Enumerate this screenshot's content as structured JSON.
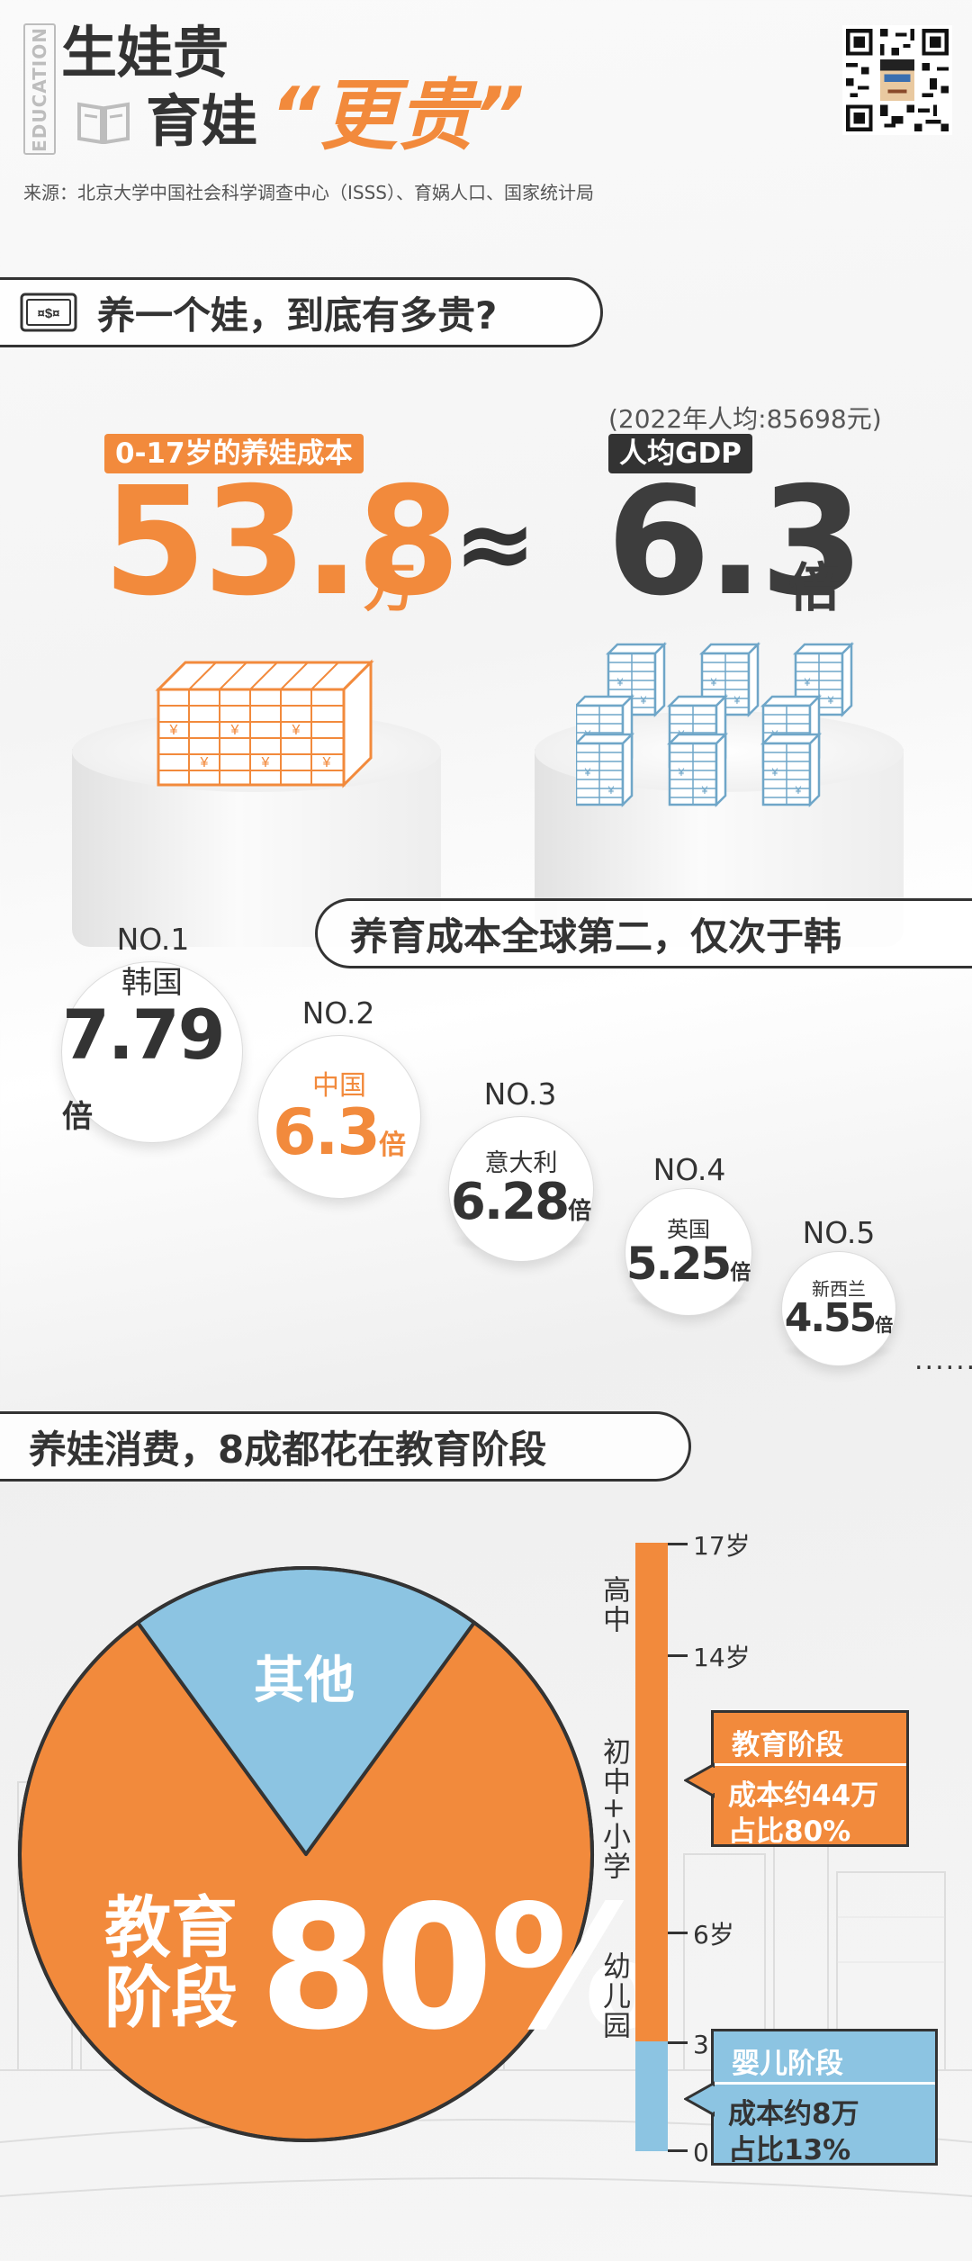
{
  "header": {
    "side_label": "EDUCATION",
    "title_line1": "生娃贵",
    "title_line2": "育娃",
    "title_emphasis": "“更贵”",
    "source": "来源：北京大学中国社会科学调查中心（ISSS）、育娲人口、国家统计局"
  },
  "section1": {
    "heading": "养一个娃，到底有多贵?",
    "left_tag": "0-17岁的养娃成本",
    "left_value": "53.8",
    "left_unit": "万",
    "approx_sign": "≈",
    "gdp_note": "(2022年人均:85698元)",
    "right_tag": "人均GDP",
    "right_value": "6.3",
    "right_unit": "倍"
  },
  "ranking": {
    "heading": "养育成本全球第二，仅次于韩",
    "more": "......",
    "items": [
      {
        "rank": "NO.1",
        "country": "韩国",
        "value": "7.79",
        "unit": "倍",
        "color": "#333333"
      },
      {
        "rank": "NO.2",
        "country": "中国",
        "value": "6.3",
        "unit": "倍",
        "color": "#f28a3c"
      },
      {
        "rank": "NO.3",
        "country": "意大利",
        "value": "6.28",
        "unit": "倍",
        "color": "#333333"
      },
      {
        "rank": "NO.4",
        "country": "英国",
        "value": "5.25",
        "unit": "倍",
        "color": "#333333"
      },
      {
        "rank": "NO.5",
        "country": "新西兰",
        "value": "4.55",
        "unit": "倍",
        "color": "#333333"
      }
    ]
  },
  "section3": {
    "heading": "养娃消费，8成都花在教育阶段",
    "pie_other_label": "其他",
    "pie_main_label_1": "教育",
    "pie_main_label_2": "阶段",
    "pie_main_pct": "80%",
    "timeline_ages": [
      "17岁",
      "14岁",
      "6岁",
      "3岁",
      "0岁"
    ],
    "timeline_stages": [
      "高中",
      "初中+小学",
      "幼儿园"
    ],
    "callout_edu": {
      "title": "教育阶段",
      "line1": "成本约44万",
      "line2": "占比80%"
    },
    "callout_baby": {
      "title": "婴儿阶段",
      "line1": "成本约8万",
      "line2": "占比13%"
    }
  },
  "colors": {
    "accent": "#f28a3c",
    "blue": "#8cc4e2",
    "dark": "#333333"
  },
  "chart_data": {
    "type": "pie",
    "slices": [
      {
        "label": "教育阶段",
        "value": 80
      },
      {
        "label": "其他",
        "value": 20
      }
    ]
  }
}
